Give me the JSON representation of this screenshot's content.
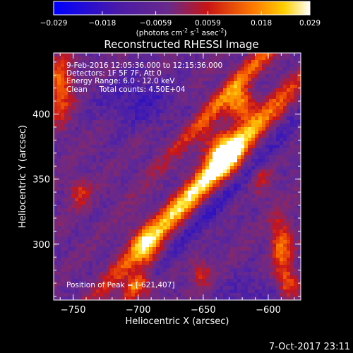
{
  "colorbar": {
    "ticks": [
      "-0.029",
      "-0.018",
      "-0.0059",
      "0.0059",
      "0.018",
      "0.029"
    ],
    "unit_parts": [
      "(photons cm",
      "-2",
      " s",
      "-1",
      " asec",
      "-2",
      ")"
    ],
    "range": [
      -0.029,
      0.029
    ]
  },
  "chart_data": {
    "type": "heatmap",
    "title": "Reconstructed RHESSI Image",
    "xlabel": "Heliocentric X (arcsec)",
    "ylabel": "Heliocentric Y (arcsec)",
    "xlim": [
      -765,
      -575
    ],
    "ylim": [
      257,
      447
    ],
    "x_ticks": [
      -750,
      -700,
      -650,
      -600
    ],
    "y_ticks": [
      300,
      350,
      400
    ],
    "colormap": "blue-purple-red-yellow-white",
    "peak": [
      -621,
      407
    ],
    "annotations": [
      "9-Feb-2016 12:05:36.000 to 12:15:36.000",
      "Detectors: 1F 5F 7F, Att 0",
      "Energy Range: 6.0 - 12.0 keV",
      "Clean     Total counts: 4.50E+04"
    ],
    "peak_label": "Position of Peak = [-621,407]"
  },
  "footer": {
    "timestamp": "7-Oct-2017 23:11"
  }
}
